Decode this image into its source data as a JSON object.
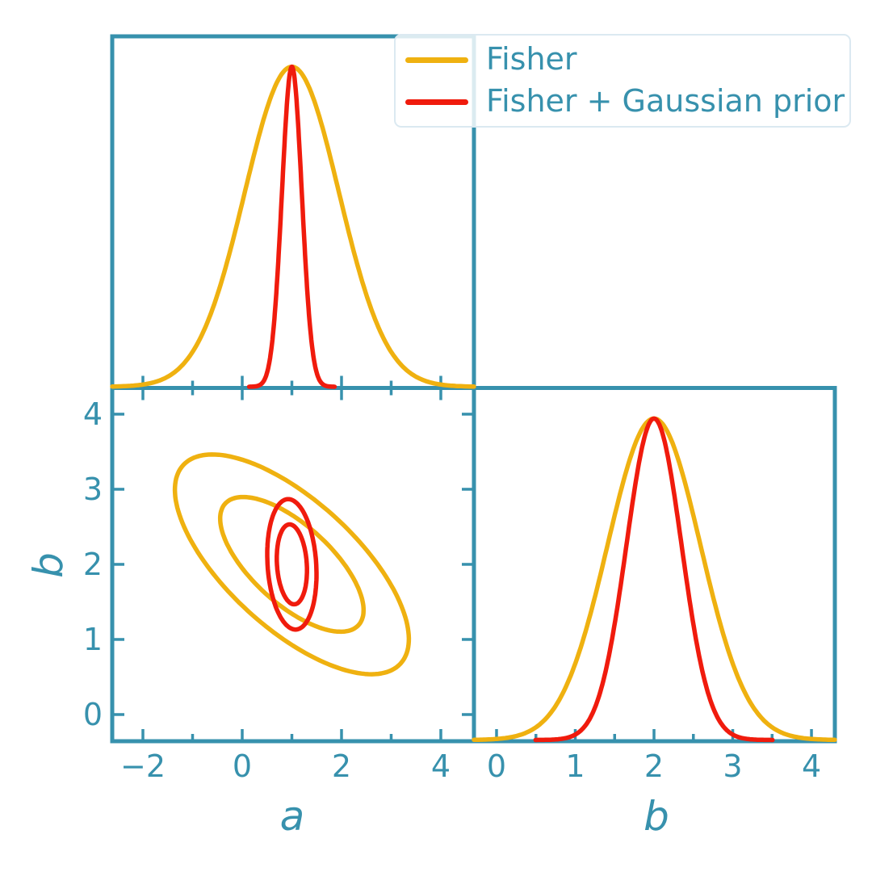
{
  "figure": {
    "background": "#ffffff",
    "axis_color": "#3791AD",
    "text_color": "#3791AD",
    "legend_border_color": "#dbe9f1"
  },
  "legend": {
    "items": [
      {
        "label": "Fisher",
        "color": "#EFB110"
      },
      {
        "label": "Fisher + Gaussian prior",
        "color": "#F01B0D"
      }
    ]
  },
  "chart_data": {
    "type": "corner_plot",
    "description": "Fisher-forecast corner (triangle) plot for parameters a and b: 1D Gaussian marginals normalized to equal peak height, and 68%/95% confidence ellipses in the a-b plane.",
    "parameters": [
      "a",
      "b"
    ],
    "series": [
      {
        "name": "Fisher",
        "color": "#EFB110",
        "mean": {
          "a": 1.0,
          "b": 2.0
        },
        "sigma": {
          "a": 0.95,
          "b": 0.59
        },
        "correlation_ab": -0.68
      },
      {
        "name": "Fisher + Gaussian prior",
        "color": "#F01B0D",
        "mean": {
          "a": 1.0,
          "b": 2.0
        },
        "sigma": {
          "a": 0.2,
          "b": 0.35
        },
        "correlation_ab": -0.15
      }
    ],
    "confidence_levels": [
      "68%",
      "95%"
    ],
    "ellipse_scales": [
      1.52,
      2.48
    ],
    "curve_range_sigmas": 4.3,
    "peak_fraction": 0.91,
    "axes": {
      "a": {
        "label": "a",
        "lim": [
          -2.618,
          4.667
        ],
        "major_ticks": [
          -2,
          0,
          2,
          4
        ],
        "minor_ticks": [
          -1,
          1,
          3
        ]
      },
      "b_horizontal": {
        "label": "b",
        "lim": [
          -0.287,
          4.297
        ],
        "major_ticks": [
          0,
          1,
          2,
          3,
          4
        ],
        "minor_ticks": [
          0.5,
          1.5,
          2.5,
          3.5
        ]
      },
      "b_vertical": {
        "label": "b",
        "lim": [
          -0.355,
          4.349
        ],
        "major_ticks": [
          0,
          1,
          2,
          3,
          4
        ],
        "minor_ticks": []
      }
    },
    "panels": [
      {
        "id": "a-marginal",
        "position": "top-left",
        "x_axis": "a",
        "content": "1D Gaussian marginals of a"
      },
      {
        "id": "ab-contour",
        "position": "bottom-left",
        "x_axis": "a",
        "y_axis": "b",
        "content": "68% and 95% confidence ellipses of (a,b)"
      },
      {
        "id": "b-marginal",
        "position": "bottom-right",
        "x_axis": "b",
        "content": "1D Gaussian marginals of b"
      }
    ]
  }
}
